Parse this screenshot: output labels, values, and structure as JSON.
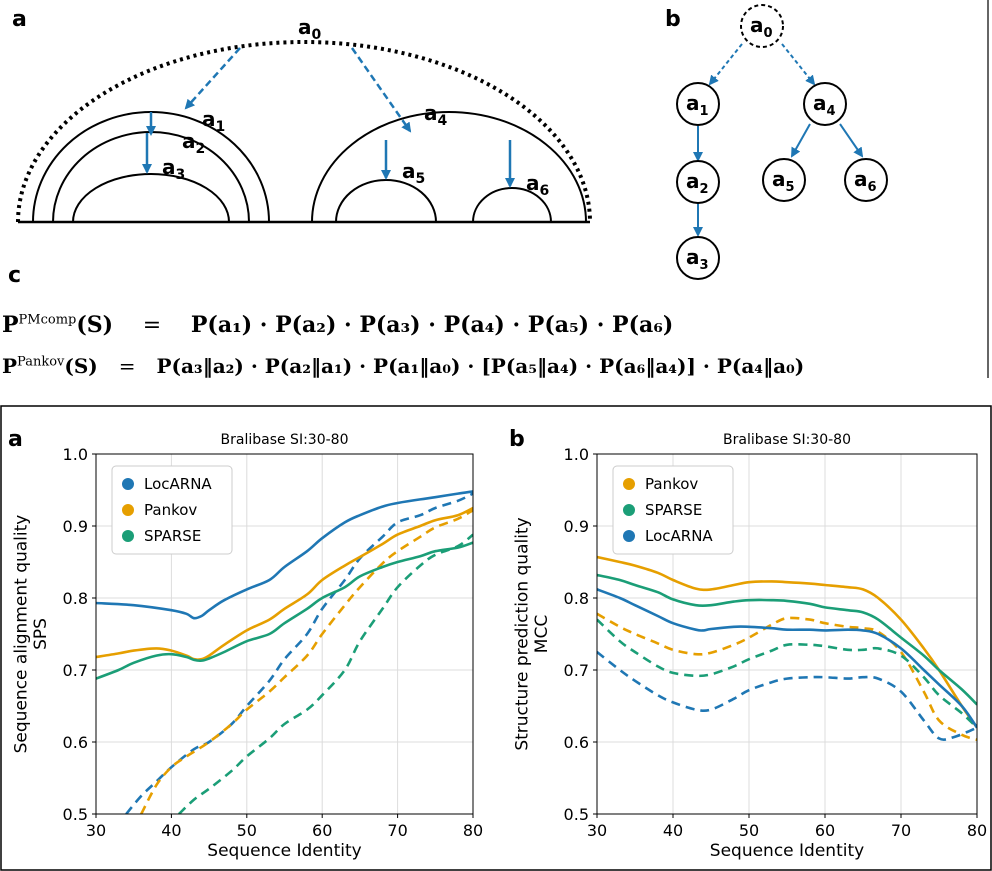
{
  "top_figure": {
    "panel_labels": {
      "a": "a",
      "b": "b",
      "c": "c"
    },
    "arc_labels": {
      "a0": {
        "base": "a",
        "sub": "0"
      },
      "a1": {
        "base": "a",
        "sub": "1"
      },
      "a2": {
        "base": "a",
        "sub": "2"
      },
      "a3": {
        "base": "a",
        "sub": "3"
      },
      "a4": {
        "base": "a",
        "sub": "4"
      },
      "a5": {
        "base": "a",
        "sub": "5"
      },
      "a6": {
        "base": "a",
        "sub": "6"
      }
    },
    "equations": {
      "pmcomp_lhs": "P",
      "pmcomp_sup": "PMcomp",
      "pmcomp_arg": "(S)",
      "equals": "=",
      "pmcomp_rhs": "P(a₁) · P(a₂) · P(a₃) · P(a₄) · P(a₅) · P(a₆)",
      "pankov_lhs": "P",
      "pankov_sup": "Pankov",
      "pankov_arg": "(S)",
      "pankov_rhs": "P(a₃‖a₂) · P(a₂‖a₁) · P(a₁‖a₀) · [P(a₅‖a₄) · P(a₆‖a₄)] · P(a₄‖a₀)"
    },
    "colors": {
      "arrow": "#1f77b4"
    }
  },
  "chart_data": [
    {
      "type": "line",
      "panel_label": "a",
      "title": "Bralibase SI:30-80",
      "xlabel": "Sequence Identity",
      "ylabel_line1": "Sequence alignment quality",
      "ylabel_line2": "SPS",
      "xlim": [
        30,
        80
      ],
      "ylim": [
        0.5,
        1.0
      ],
      "xticks": [
        30,
        40,
        50,
        60,
        70,
        80
      ],
      "yticks": [
        0.5,
        0.6,
        0.7,
        0.8,
        0.9,
        1.0
      ],
      "xtick_labels": [
        "30",
        "40",
        "50",
        "60",
        "70",
        "80"
      ],
      "ytick_labels": [
        "0.5",
        "0.6",
        "0.7",
        "0.8",
        "0.9",
        "1.0"
      ],
      "grid": true,
      "legend_position": "top-left",
      "legend": [
        "LocARNA",
        "Pankov",
        "SPARSE"
      ],
      "series": [
        {
          "name": "LocARNA",
          "color": "#1f77b4",
          "style": "solid",
          "x": [
            30,
            35,
            40,
            42,
            43,
            44,
            45,
            47,
            50,
            53,
            55,
            58,
            60,
            63,
            65,
            68,
            70,
            73,
            75,
            78,
            80
          ],
          "y": [
            0.793,
            0.79,
            0.783,
            0.778,
            0.772,
            0.775,
            0.783,
            0.797,
            0.812,
            0.825,
            0.843,
            0.865,
            0.883,
            0.905,
            0.915,
            0.927,
            0.932,
            0.937,
            0.94,
            0.945,
            0.948
          ]
        },
        {
          "name": "LocARNA",
          "color": "#1f77b4",
          "style": "dashed",
          "x": [
            34,
            36,
            38,
            40,
            43,
            45,
            48,
            50,
            53,
            55,
            58,
            60,
            63,
            65,
            68,
            70,
            73,
            75,
            78,
            80
          ],
          "y": [
            0.5,
            0.525,
            0.545,
            0.565,
            0.59,
            0.6,
            0.625,
            0.65,
            0.685,
            0.715,
            0.75,
            0.785,
            0.825,
            0.855,
            0.885,
            0.905,
            0.915,
            0.925,
            0.935,
            0.945
          ]
        },
        {
          "name": "Pankov",
          "color": "#e69f00",
          "style": "solid",
          "x": [
            30,
            33,
            35,
            38,
            40,
            42,
            43,
            44,
            45,
            47,
            50,
            53,
            55,
            58,
            60,
            63,
            65,
            68,
            70,
            73,
            75,
            78,
            80
          ],
          "y": [
            0.718,
            0.723,
            0.727,
            0.73,
            0.727,
            0.72,
            0.715,
            0.715,
            0.72,
            0.735,
            0.755,
            0.77,
            0.785,
            0.805,
            0.825,
            0.845,
            0.857,
            0.875,
            0.888,
            0.9,
            0.908,
            0.915,
            0.925
          ]
        },
        {
          "name": "Pankov",
          "color": "#e69f00",
          "style": "dashed",
          "x": [
            36,
            38,
            40,
            42,
            45,
            48,
            50,
            53,
            55,
            58,
            60,
            63,
            65,
            68,
            70,
            73,
            75,
            78,
            80
          ],
          "y": [
            0.5,
            0.54,
            0.565,
            0.58,
            0.6,
            0.625,
            0.645,
            0.67,
            0.69,
            0.72,
            0.75,
            0.79,
            0.815,
            0.848,
            0.865,
            0.885,
            0.898,
            0.91,
            0.922
          ]
        },
        {
          "name": "SPARSE",
          "color": "#1b9e77",
          "style": "solid",
          "x": [
            30,
            33,
            35,
            38,
            40,
            42,
            43,
            44,
            45,
            47,
            50,
            53,
            55,
            58,
            60,
            63,
            65,
            68,
            70,
            73,
            75,
            78,
            80
          ],
          "y": [
            0.688,
            0.7,
            0.71,
            0.72,
            0.722,
            0.718,
            0.714,
            0.713,
            0.716,
            0.725,
            0.74,
            0.75,
            0.765,
            0.785,
            0.8,
            0.815,
            0.83,
            0.843,
            0.85,
            0.858,
            0.865,
            0.87,
            0.877
          ]
        },
        {
          "name": "SPARSE",
          "color": "#1b9e77",
          "style": "dashed",
          "x": [
            41,
            43,
            45,
            48,
            50,
            53,
            55,
            58,
            60,
            63,
            65,
            68,
            70,
            73,
            75,
            78,
            80
          ],
          "y": [
            0.5,
            0.52,
            0.535,
            0.56,
            0.58,
            0.605,
            0.625,
            0.645,
            0.665,
            0.7,
            0.74,
            0.785,
            0.815,
            0.845,
            0.86,
            0.872,
            0.888
          ]
        }
      ]
    },
    {
      "type": "line",
      "panel_label": "b",
      "title": "Bralibase SI:30-80",
      "xlabel": "Sequence Identity",
      "ylabel_line1": "Structure prediction quality",
      "ylabel_line2": "MCC",
      "xlim": [
        30,
        80
      ],
      "ylim": [
        0.5,
        1.0
      ],
      "xticks": [
        30,
        40,
        50,
        60,
        70,
        80
      ],
      "yticks": [
        0.5,
        0.6,
        0.7,
        0.8,
        0.9,
        1.0
      ],
      "xtick_labels": [
        "30",
        "40",
        "50",
        "60",
        "70",
        "80"
      ],
      "ytick_labels": [
        "0.5",
        "0.6",
        "0.7",
        "0.8",
        "0.9",
        "1.0"
      ],
      "grid": true,
      "legend_position": "top-left",
      "legend": [
        "Pankov",
        "SPARSE",
        "LocARNA"
      ],
      "series": [
        {
          "name": "Pankov",
          "color": "#e69f00",
          "style": "solid",
          "x": [
            30,
            33,
            35,
            38,
            40,
            43,
            45,
            48,
            50,
            53,
            55,
            58,
            60,
            63,
            65,
            67,
            70,
            73,
            75,
            78,
            80
          ],
          "y": [
            0.857,
            0.85,
            0.845,
            0.835,
            0.825,
            0.813,
            0.812,
            0.818,
            0.822,
            0.823,
            0.822,
            0.82,
            0.818,
            0.815,
            0.812,
            0.8,
            0.77,
            0.73,
            0.7,
            0.65,
            0.62
          ]
        },
        {
          "name": "Pankov",
          "color": "#e69f00",
          "style": "dashed",
          "x": [
            30,
            33,
            35,
            38,
            40,
            43,
            45,
            48,
            50,
            53,
            55,
            58,
            60,
            63,
            65,
            67,
            70,
            73,
            75,
            78,
            80
          ],
          "y": [
            0.778,
            0.76,
            0.75,
            0.737,
            0.728,
            0.722,
            0.724,
            0.735,
            0.745,
            0.763,
            0.772,
            0.77,
            0.765,
            0.76,
            0.758,
            0.753,
            0.725,
            0.67,
            0.63,
            0.61,
            0.603
          ]
        },
        {
          "name": "SPARSE",
          "color": "#1b9e77",
          "style": "solid",
          "x": [
            30,
            33,
            35,
            38,
            40,
            43,
            45,
            48,
            50,
            53,
            55,
            58,
            60,
            63,
            65,
            67,
            70,
            73,
            75,
            78,
            80
          ],
          "y": [
            0.832,
            0.825,
            0.818,
            0.808,
            0.798,
            0.79,
            0.79,
            0.795,
            0.797,
            0.797,
            0.796,
            0.792,
            0.787,
            0.783,
            0.78,
            0.77,
            0.745,
            0.72,
            0.7,
            0.673,
            0.652
          ]
        },
        {
          "name": "SPARSE",
          "color": "#1b9e77",
          "style": "dashed",
          "x": [
            30,
            33,
            35,
            38,
            40,
            43,
            45,
            48,
            50,
            53,
            55,
            58,
            60,
            63,
            65,
            67,
            70,
            73,
            75,
            78,
            80
          ],
          "y": [
            0.77,
            0.74,
            0.725,
            0.705,
            0.696,
            0.692,
            0.694,
            0.705,
            0.715,
            0.727,
            0.735,
            0.735,
            0.733,
            0.728,
            0.728,
            0.73,
            0.72,
            0.69,
            0.665,
            0.64,
            0.62
          ]
        },
        {
          "name": "LocARNA",
          "color": "#1f77b4",
          "style": "solid",
          "x": [
            30,
            33,
            35,
            38,
            40,
            43,
            44,
            45,
            48,
            50,
            53,
            55,
            58,
            60,
            63,
            65,
            67,
            70,
            73,
            75,
            78,
            80
          ],
          "y": [
            0.812,
            0.8,
            0.79,
            0.775,
            0.765,
            0.756,
            0.755,
            0.757,
            0.76,
            0.76,
            0.758,
            0.756,
            0.756,
            0.755,
            0.756,
            0.755,
            0.75,
            0.73,
            0.7,
            0.68,
            0.65,
            0.62
          ]
        },
        {
          "name": "LocARNA",
          "color": "#1f77b4",
          "style": "dashed",
          "x": [
            30,
            33,
            35,
            38,
            40,
            43,
            45,
            48,
            50,
            53,
            55,
            58,
            60,
            63,
            65,
            67,
            70,
            73,
            75,
            77,
            80
          ],
          "y": [
            0.725,
            0.7,
            0.685,
            0.665,
            0.655,
            0.645,
            0.645,
            0.66,
            0.672,
            0.683,
            0.688,
            0.69,
            0.69,
            0.688,
            0.69,
            0.688,
            0.67,
            0.63,
            0.605,
            0.607,
            0.62
          ]
        }
      ]
    }
  ]
}
